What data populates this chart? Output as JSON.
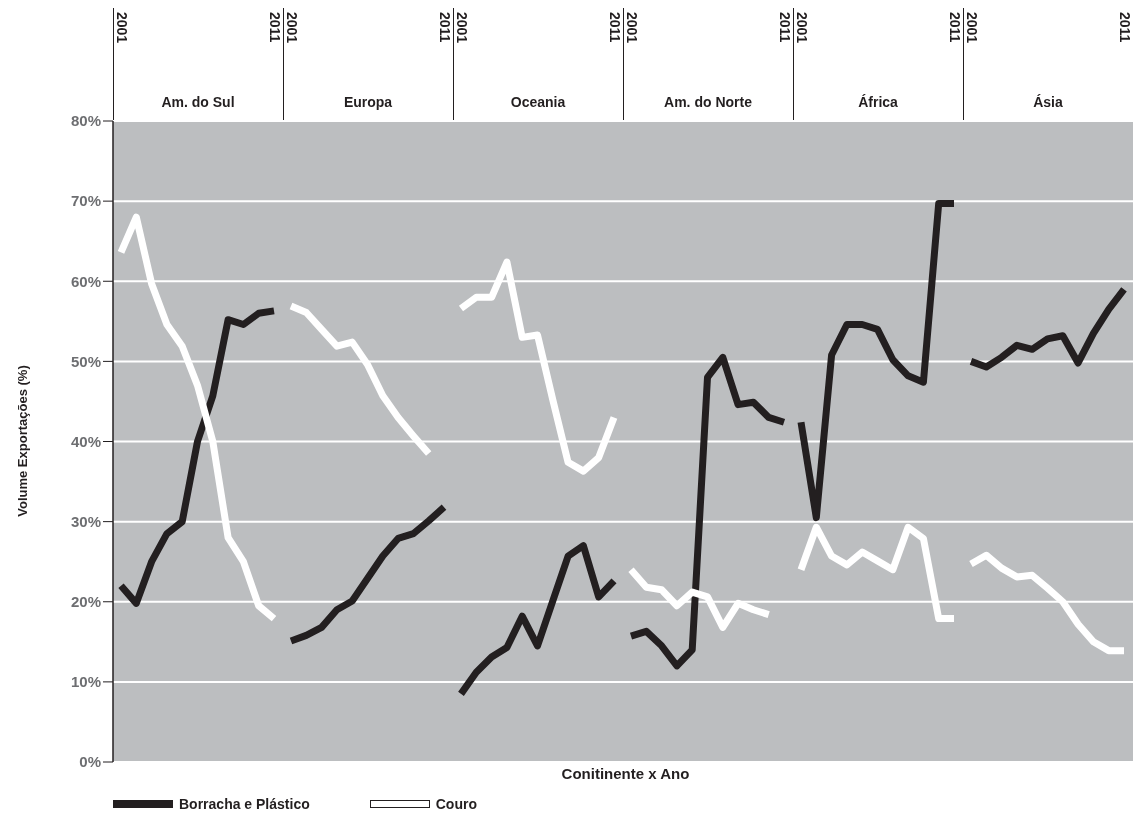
{
  "chart_data": [
    {
      "type": "line",
      "title": "Am. do Sul",
      "ylabel": "Volume Exportações (%)",
      "categories": [
        "2001",
        null,
        null,
        null,
        null,
        null,
        null,
        null,
        null,
        null,
        "2011"
      ],
      "series": [
        {
          "name": "Borracha e Plástico",
          "color": "#231f20",
          "values": [
            22,
            19.8,
            25,
            28.5,
            30,
            40,
            45.7,
            55.2,
            54.6,
            56,
            56.3
          ]
        },
        {
          "name": "Couro",
          "color": "#ffffff",
          "values": [
            63.6,
            68,
            59.7,
            54.6,
            51.9,
            47,
            40,
            28,
            25,
            19.5,
            17.9
          ]
        }
      ],
      "ylim": [
        0,
        80
      ],
      "yticks": [
        {
          "value": 0,
          "label": "0%"
        },
        {
          "value": 10,
          "label": "10%"
        },
        {
          "value": 20,
          "label": "20%"
        },
        {
          "value": 30,
          "label": "30%"
        },
        {
          "value": 40,
          "label": "40%"
        },
        {
          "value": 50,
          "label": "50%"
        },
        {
          "value": 60,
          "label": "60%"
        },
        {
          "value": 70,
          "label": "70%"
        },
        {
          "value": 80,
          "label": "80%"
        }
      ],
      "grid": "y",
      "marker": "none",
      "line_style": "solid",
      "legend": "bottom right"
    },
    {
      "type": "line",
      "title": "Europa",
      "categories": [
        "2001",
        null,
        null,
        null,
        null,
        null,
        null,
        null,
        null,
        null,
        "2011"
      ],
      "series": [
        {
          "color": "#231f20",
          "values": [
            15.1,
            15.8,
            16.8,
            19,
            20.1,
            22.9,
            25.7,
            27.9,
            28.5,
            30.1,
            31.8
          ]
        },
        {
          "color": "#ffffff",
          "values": [
            56.9,
            56.1,
            54,
            51.9,
            52.4,
            49.6,
            45.7,
            43,
            40.7,
            38.5,
            null
          ]
        }
      ],
      "ylim": [
        0,
        80
      ],
      "yticks": [
        0,
        10,
        20,
        30,
        40,
        50,
        60,
        70,
        80
      ],
      "grid": "y",
      "marker": "none",
      "line_style": "solid",
      "tick_labels": "x"
    },
    {
      "type": "line",
      "title": "Oceania",
      "xlabel": "Conitinente x Ano",
      "categories": [
        "2001",
        null,
        null,
        null,
        null,
        null,
        null,
        null,
        null,
        null,
        "2011"
      ],
      "series": [
        {
          "color": "#231f20",
          "values": [
            8.5,
            11.2,
            13.1,
            14.3,
            18.2,
            14.5,
            20.1,
            25.7,
            27,
            20.6,
            22.6
          ]
        },
        {
          "color": "#ffffff",
          "values": [
            56.6,
            58,
            58,
            62.4,
            53,
            53.3,
            45.2,
            37.4,
            36.3,
            38,
            43
          ]
        }
      ],
      "ylim": [
        0,
        80
      ],
      "yticks": [
        0,
        10,
        20,
        30,
        40,
        50,
        60,
        70,
        80
      ],
      "grid": "y",
      "marker": "none",
      "line_style": "solid",
      "tick_labels": "x"
    },
    {
      "type": "line",
      "title": "Am. do Norte",
      "categories": [
        "2001",
        null,
        null,
        null,
        null,
        null,
        null,
        null,
        null,
        null,
        "2011"
      ],
      "series": [
        {
          "color": "#231f20",
          "values": [
            15.7,
            16.3,
            14.5,
            12,
            14,
            48,
            50.5,
            44.6,
            44.9,
            43,
            42.4
          ]
        },
        {
          "color": "#ffffff",
          "values": [
            24,
            21.8,
            21.5,
            19.5,
            21.2,
            20.6,
            16.8,
            19.8,
            19,
            18.4,
            null
          ]
        }
      ],
      "ylim": [
        0,
        80
      ],
      "yticks": [
        0,
        10,
        20,
        30,
        40,
        50,
        60,
        70,
        80
      ],
      "grid": "y",
      "marker": "none",
      "line_style": "solid",
      "tick_labels": "x"
    },
    {
      "type": "line",
      "title": "África",
      "categories": [
        "2001",
        null,
        null,
        null,
        null,
        null,
        null,
        null,
        null,
        null,
        "2011"
      ],
      "series": [
        {
          "color": "#231f20",
          "values": [
            42.4,
            30.5,
            50.8,
            54.6,
            54.6,
            54,
            50.2,
            48.2,
            47.4,
            69.7,
            69.7
          ]
        },
        {
          "color": "#ffffff",
          "values": [
            24,
            29.3,
            25.7,
            24.6,
            26.2,
            25.1,
            24,
            29.3,
            27.9,
            17.9,
            17.9
          ]
        }
      ],
      "ylim": [
        0,
        80
      ],
      "yticks": [
        0,
        10,
        20,
        30,
        40,
        50,
        60,
        70,
        80
      ],
      "grid": "y",
      "marker": "none",
      "line_style": "solid",
      "tick_labels": "x"
    },
    {
      "type": "line",
      "title": "Ásia",
      "categories": [
        "2001",
        null,
        null,
        null,
        null,
        null,
        null,
        null,
        null,
        null,
        "2011"
      ],
      "series": [
        {
          "color": "#231f20",
          "values": [
            50,
            49.3,
            50.5,
            52,
            51.5,
            52.8,
            53.2,
            49.8,
            53.5,
            56.5,
            59
          ]
        },
        {
          "color": "#ffffff",
          "values": [
            24.7,
            25.8,
            24.2,
            23.1,
            23.3,
            21.7,
            20,
            17.2,
            15,
            13.9,
            13.9
          ]
        }
      ],
      "ylim": [
        0,
        80
      ],
      "yticks": [
        0,
        10,
        20,
        30,
        40,
        50,
        60,
        70,
        80
      ],
      "grid": "y",
      "marker": "none",
      "line_style": "solid",
      "tick_labels": "x"
    }
  ]
}
